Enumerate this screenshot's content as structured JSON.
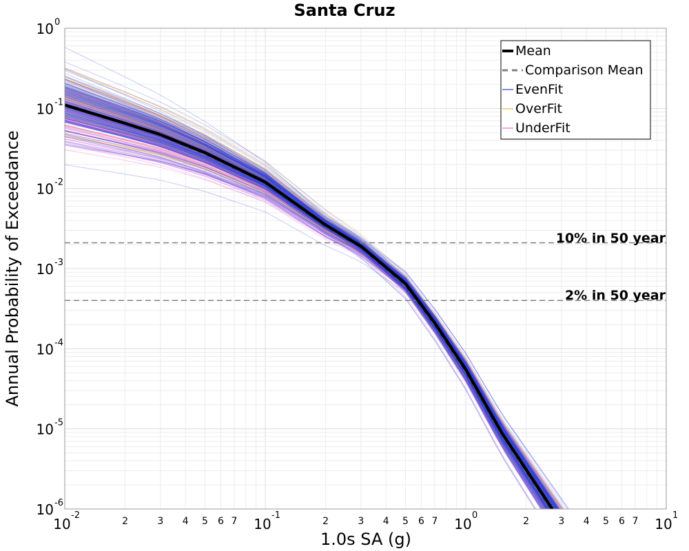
{
  "chart_data": {
    "type": "line",
    "title": "Santa Cruz",
    "xlabel": "1.0s SA (g)",
    "ylabel": "Annual Probability of Exceedance",
    "x_scale": "log",
    "y_scale": "log",
    "xlim": [
      0.01,
      10
    ],
    "ylim": [
      1e-06,
      1
    ],
    "grid": true,
    "legend_position": "top-right",
    "x_major_ticks": [
      {
        "base": "10",
        "exp": "-2",
        "value": 0.01
      },
      {
        "base": "10",
        "exp": "-1",
        "value": 0.1
      },
      {
        "base": "10",
        "exp": "0",
        "value": 1
      },
      {
        "base": "10",
        "exp": "1",
        "value": 10
      }
    ],
    "x_minor_tick_labels": [
      "2",
      "3",
      "4",
      "5",
      "6",
      "7"
    ],
    "y_major_ticks": [
      {
        "base": "10",
        "exp": "0",
        "value": 1
      },
      {
        "base": "10",
        "exp": "-1",
        "value": 0.1
      },
      {
        "base": "10",
        "exp": "-2",
        "value": 0.01
      },
      {
        "base": "10",
        "exp": "-3",
        "value": 0.001
      },
      {
        "base": "10",
        "exp": "-4",
        "value": 0.0001
      },
      {
        "base": "10",
        "exp": "-5",
        "value": 1e-05
      },
      {
        "base": "10",
        "exp": "-6",
        "value": 1e-06
      }
    ],
    "series": [
      {
        "name": "Mean",
        "style": "solid-thick",
        "color": "#000000",
        "x": [
          0.01,
          0.02,
          0.03,
          0.05,
          0.1,
          0.2,
          0.3,
          0.5,
          0.7,
          1.0,
          1.5,
          2.0,
          2.7
        ],
        "values": [
          0.11,
          0.065,
          0.047,
          0.028,
          0.012,
          0.0035,
          0.0019,
          0.00065,
          0.00021,
          5.5e-05,
          9.2e-06,
          3.1e-06,
          1e-06
        ]
      },
      {
        "name": "Comparison Mean",
        "style": "dashed",
        "color": "#808080",
        "x": [
          0.01,
          0.02,
          0.03,
          0.05,
          0.1,
          0.2,
          0.3,
          0.5,
          0.7,
          1.0,
          1.5,
          2.0,
          2.7
        ],
        "values": [
          0.11,
          0.064,
          0.046,
          0.027,
          0.0118,
          0.0034,
          0.00185,
          0.00062,
          0.0002,
          5.2e-05,
          8.8e-06,
          2.9e-06,
          9.5e-07
        ]
      },
      {
        "name": "EvenFit",
        "style": "band",
        "color": "#3344dd",
        "description_count": 160
      },
      {
        "name": "OverFit",
        "style": "band",
        "color": "#f0b040",
        "description_count": 60
      },
      {
        "name": "UnderFit",
        "style": "band",
        "color": "#ee66dd",
        "description_count": 90
      }
    ],
    "hlines": [
      {
        "label": "10% in 50 year",
        "value": 0.0021,
        "color": "#808080"
      },
      {
        "label": "2% in 50 year",
        "value": 0.0004,
        "color": "#808080"
      }
    ]
  }
}
